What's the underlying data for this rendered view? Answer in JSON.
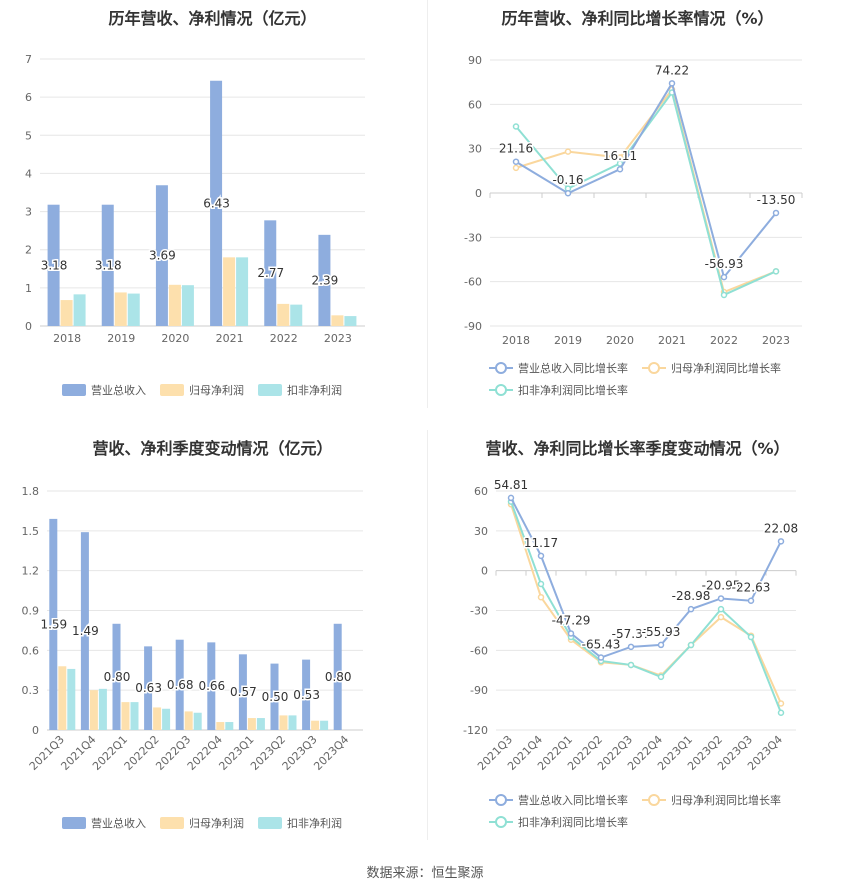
{
  "source_label": "数据来源：恒生聚源",
  "colors": {
    "revenue": "#8eadde",
    "net_profit": "#fde0ad",
    "deducted_profit": "#abe4e8",
    "revenue_line": "#8eadde",
    "net_profit_line": "#fad79d",
    "deducted_line": "#8fe0d4",
    "grid": "#e6e6e6",
    "axis_text": "#666666"
  },
  "chart_data": [
    {
      "type": "bar",
      "title": "历年营收、净利情况（亿元）",
      "categories": [
        "2018",
        "2019",
        "2020",
        "2021",
        "2022",
        "2023"
      ],
      "series": [
        {
          "name": "营业总收入",
          "values": [
            3.18,
            3.18,
            3.69,
            6.43,
            2.77,
            2.39
          ],
          "labels": [
            "3.18",
            "3.18",
            "3.69",
            "6.43",
            "2.77",
            "2.39"
          ]
        },
        {
          "name": "归母净利润",
          "values": [
            0.68,
            0.88,
            1.08,
            1.8,
            0.58,
            0.28
          ]
        },
        {
          "name": "扣非净利润",
          "values": [
            0.83,
            0.85,
            1.07,
            1.8,
            0.56,
            0.26
          ]
        }
      ],
      "ylim": [
        0,
        7
      ],
      "yticks": [
        0,
        1,
        2,
        3,
        4,
        5,
        6,
        7
      ],
      "legend": "bottom"
    },
    {
      "type": "line",
      "title": "历年营收、净利同比增长率情况（%）",
      "categories": [
        "2018",
        "2019",
        "2020",
        "2021",
        "2022",
        "2023"
      ],
      "series": [
        {
          "name": "营业总收入同比增长率",
          "values": [
            21.16,
            -0.16,
            16.11,
            74.22,
            -56.93,
            -13.5
          ],
          "labels": [
            "21.16",
            "-0.16",
            "16.11",
            "74.22",
            "-56.93",
            "-13.50"
          ]
        },
        {
          "name": "归母净利润同比增长率",
          "values": [
            17,
            28,
            24,
            70,
            -67,
            -53
          ]
        },
        {
          "name": "扣非净利润同比增长率",
          "values": [
            45,
            3,
            20,
            68,
            -69,
            -53
          ]
        }
      ],
      "ylim": [
        -90,
        90
      ],
      "yticks": [
        -90,
        -60,
        -30,
        0,
        30,
        60,
        90
      ],
      "legend": "bottom"
    },
    {
      "type": "bar",
      "title": "营收、净利季度变动情况（亿元）",
      "categories": [
        "2021Q3",
        "2021Q4",
        "2022Q1",
        "2022Q2",
        "2022Q3",
        "2022Q4",
        "2023Q1",
        "2023Q2",
        "2023Q3",
        "2023Q4"
      ],
      "series": [
        {
          "name": "营业总收入",
          "values": [
            1.59,
            1.49,
            0.8,
            0.63,
            0.68,
            0.66,
            0.57,
            0.5,
            0.53,
            0.8
          ],
          "labels": [
            "1.59",
            "1.49",
            "0.80",
            "0.63",
            "0.68",
            "0.66",
            "0.57",
            "0.50",
            "0.53",
            "0.80"
          ]
        },
        {
          "name": "归母净利润",
          "values": [
            0.48,
            0.3,
            0.21,
            0.17,
            0.14,
            0.06,
            0.09,
            0.11,
            0.07,
            0.0
          ]
        },
        {
          "name": "扣非净利润",
          "values": [
            0.46,
            0.31,
            0.21,
            0.16,
            0.13,
            0.06,
            0.09,
            0.11,
            0.07,
            0.0
          ]
        }
      ],
      "ylim": [
        0,
        1.8
      ],
      "yticks": [
        0,
        0.3,
        0.6,
        0.9,
        1.2,
        1.5,
        1.8
      ],
      "legend": "bottom"
    },
    {
      "type": "line",
      "title": "营收、净利同比增长率季度变动情况（%）",
      "categories": [
        "2021Q3",
        "2021Q4",
        "2022Q1",
        "2022Q2",
        "2022Q3",
        "2022Q4",
        "2023Q1",
        "2023Q2",
        "2023Q3",
        "2023Q4"
      ],
      "series": [
        {
          "name": "营业总收入同比增长率",
          "values": [
            54.81,
            11.17,
            -47.29,
            -65.43,
            -57.37,
            -55.93,
            -28.98,
            -20.95,
            -22.63,
            22.08
          ],
          "labels": [
            "54.81",
            "11.17",
            "-47.29",
            "-65.43",
            "-57.37",
            "-55.93",
            "-28.98",
            "-20.95",
            "-22.63",
            "22.08"
          ]
        },
        {
          "name": "归母净利润同比增长率",
          "values": [
            50,
            -20,
            -52,
            -69,
            -71,
            -79,
            -56,
            -35,
            -49,
            -100
          ]
        },
        {
          "name": "扣非净利润同比增长率",
          "values": [
            52,
            -10,
            -50,
            -68,
            -71,
            -80,
            -56,
            -29,
            -50,
            -107
          ]
        }
      ],
      "ylim": [
        -120,
        60
      ],
      "yticks": [
        -120,
        -90,
        -60,
        -30,
        0,
        30,
        60
      ],
      "legend": "bottom"
    }
  ]
}
